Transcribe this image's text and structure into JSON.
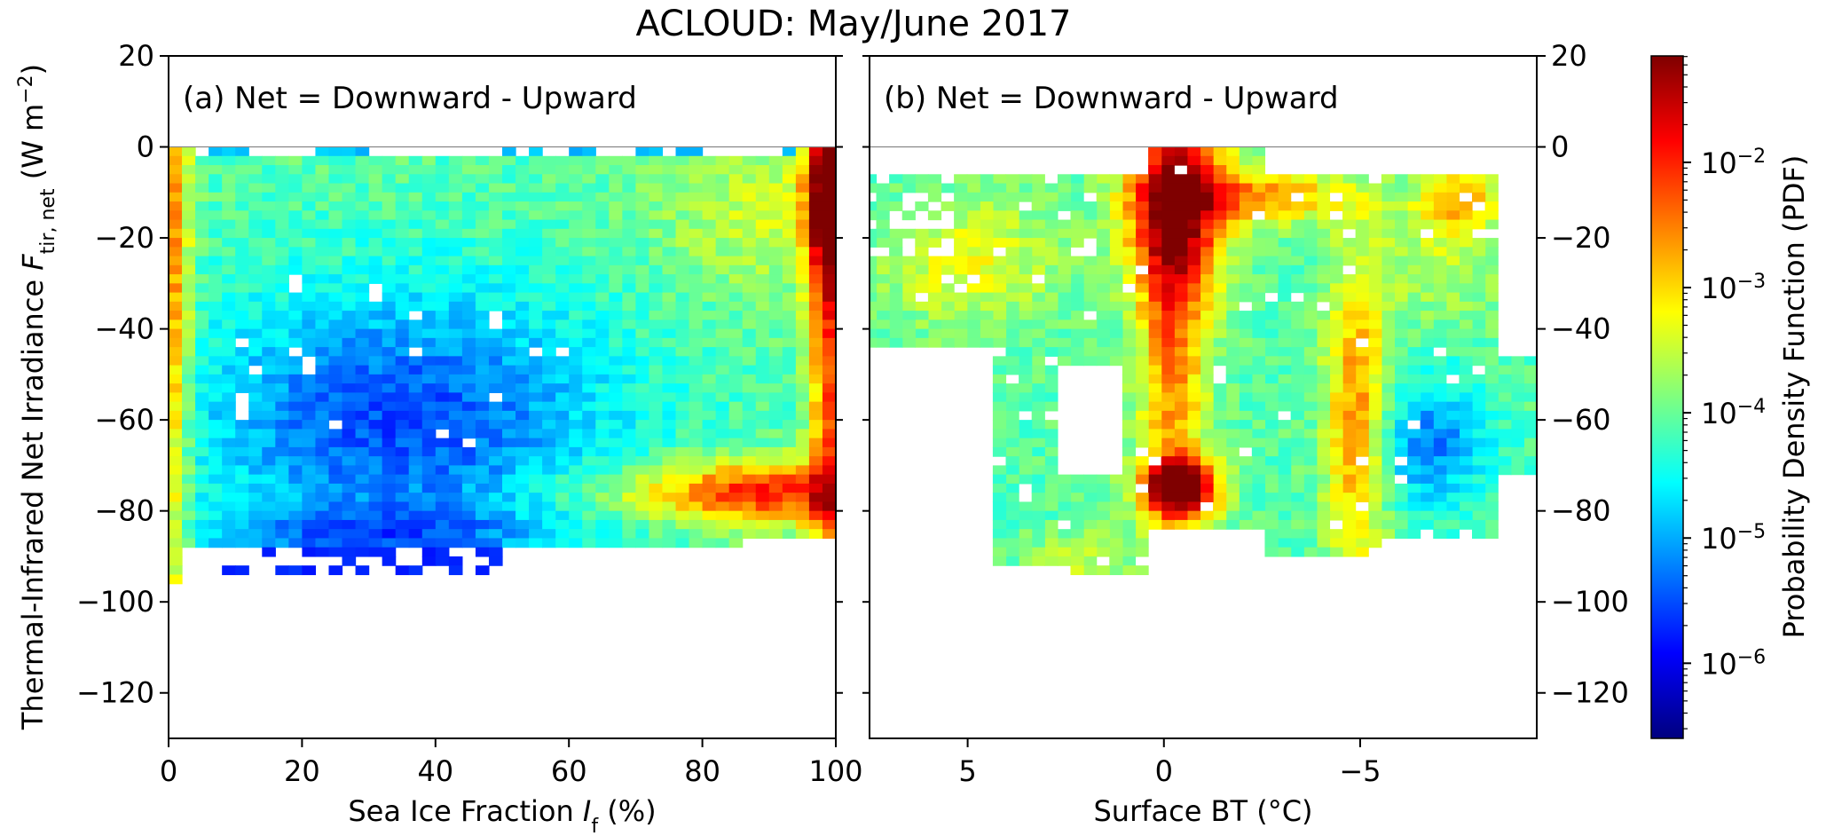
{
  "figure": {
    "suptitle": "ACLOUD: May/June 2017",
    "ylabel_main": "Thermal-Infrared Net Irradiance ",
    "ylabel_var": "F",
    "ylabel_sub": "tir, net",
    "ylabel_unit_open": " (W m",
    "ylabel_unit_exp": "−2",
    "ylabel_unit_close": ")",
    "colorbar_label": "Probability Density Function (PDF)"
  },
  "colors": {
    "jet": [
      "#00007f",
      "#0000ff",
      "#007fff",
      "#00ffff",
      "#7fff7f",
      "#ffff00",
      "#ff7f00",
      "#ff0000",
      "#7f0000"
    ],
    "zero_line": "#888888",
    "axes": "#000000"
  },
  "chart_data": [
    {
      "type": "heatmap",
      "panel": "a",
      "annotation": "(a) Net = Downward - Upward",
      "xlabel_main": "Sea Ice Fraction ",
      "xlabel_var": "I",
      "xlabel_sub": "f",
      "xlabel_unit": " (%)",
      "xlim": [
        0,
        100
      ],
      "ylim": [
        -130,
        20
      ],
      "xticks": [
        0,
        20,
        40,
        60,
        80,
        100
      ],
      "xtick_labels": [
        "0",
        "20",
        "40",
        "60",
        "80",
        "100"
      ],
      "yticks": [
        20,
        0,
        -20,
        -40,
        -60,
        -80,
        -100,
        -120
      ],
      "ytick_labels": [
        "20",
        "0",
        "−20",
        "−40",
        "−60",
        "−80",
        "−100",
        "−120"
      ],
      "ytick_side": "left",
      "zero_line": true,
      "cell_size": {
        "x": 2,
        "y": 2
      },
      "pdf_range_log10": [
        -6.5,
        -1.2
      ],
      "cells_summary": "Log10 PDF per 2%×2 W m−2 bin: ~1e-4 (cyan) background from 0 to −88 W m−2, maxima near 1e-3–1e-2 at 0–3% and 95–100% ice fraction, elevated band near −75 W m−2 for ice fraction > 75%, minima ~1e-6 (blue) between −30 and −90 W m−2 at 5–75% ice fraction."
    },
    {
      "type": "heatmap",
      "panel": "b",
      "annotation": "(b) Net = Downward - Upward",
      "xlabel": "Surface BT (°C)",
      "xlim": [
        7.5,
        -9.5
      ],
      "ylim": [
        -130,
        20
      ],
      "xticks": [
        5,
        0,
        -5
      ],
      "xtick_labels": [
        "5",
        "0",
        "−5"
      ],
      "yticks": [
        20,
        0,
        -20,
        -40,
        -60,
        -80,
        -100,
        -120
      ],
      "ytick_labels": [
        "20",
        "0",
        "−20",
        "−40",
        "−60",
        "−80",
        "−100",
        "−120"
      ],
      "ytick_side": "right",
      "zero_line": true,
      "cell_size": {
        "x": 0.33,
        "y": 2
      },
      "pdf_range_log10": [
        -6.5,
        -1.2
      ],
      "cells_summary": "Log10 PDF per 0.33 °C×2 W m−2 bin: ~1e-2 maximum at 0 to −1 °C near 0 to −30 W m−2 and a dark-red peak near −0.5 °C, −75 W m−2; elevated band from −2 to −7 °C near −10 W m−2; secondary ridge near −5 °C from −30 to −80 W m−2; minima ~1e-5 at −6 to −8 °C, −55 to −85 W m−2."
    },
    {
      "type": "colorbar",
      "scale": "log",
      "range_log10": [
        -6.6,
        -1.15
      ],
      "ticks_log10": [
        -6,
        -5,
        -4,
        -3,
        -2
      ],
      "tick_base": "10",
      "tick_exponents": [
        "−6",
        "−5",
        "−4",
        "−3",
        "−2"
      ],
      "label": "Probability Density Function (PDF)"
    }
  ]
}
